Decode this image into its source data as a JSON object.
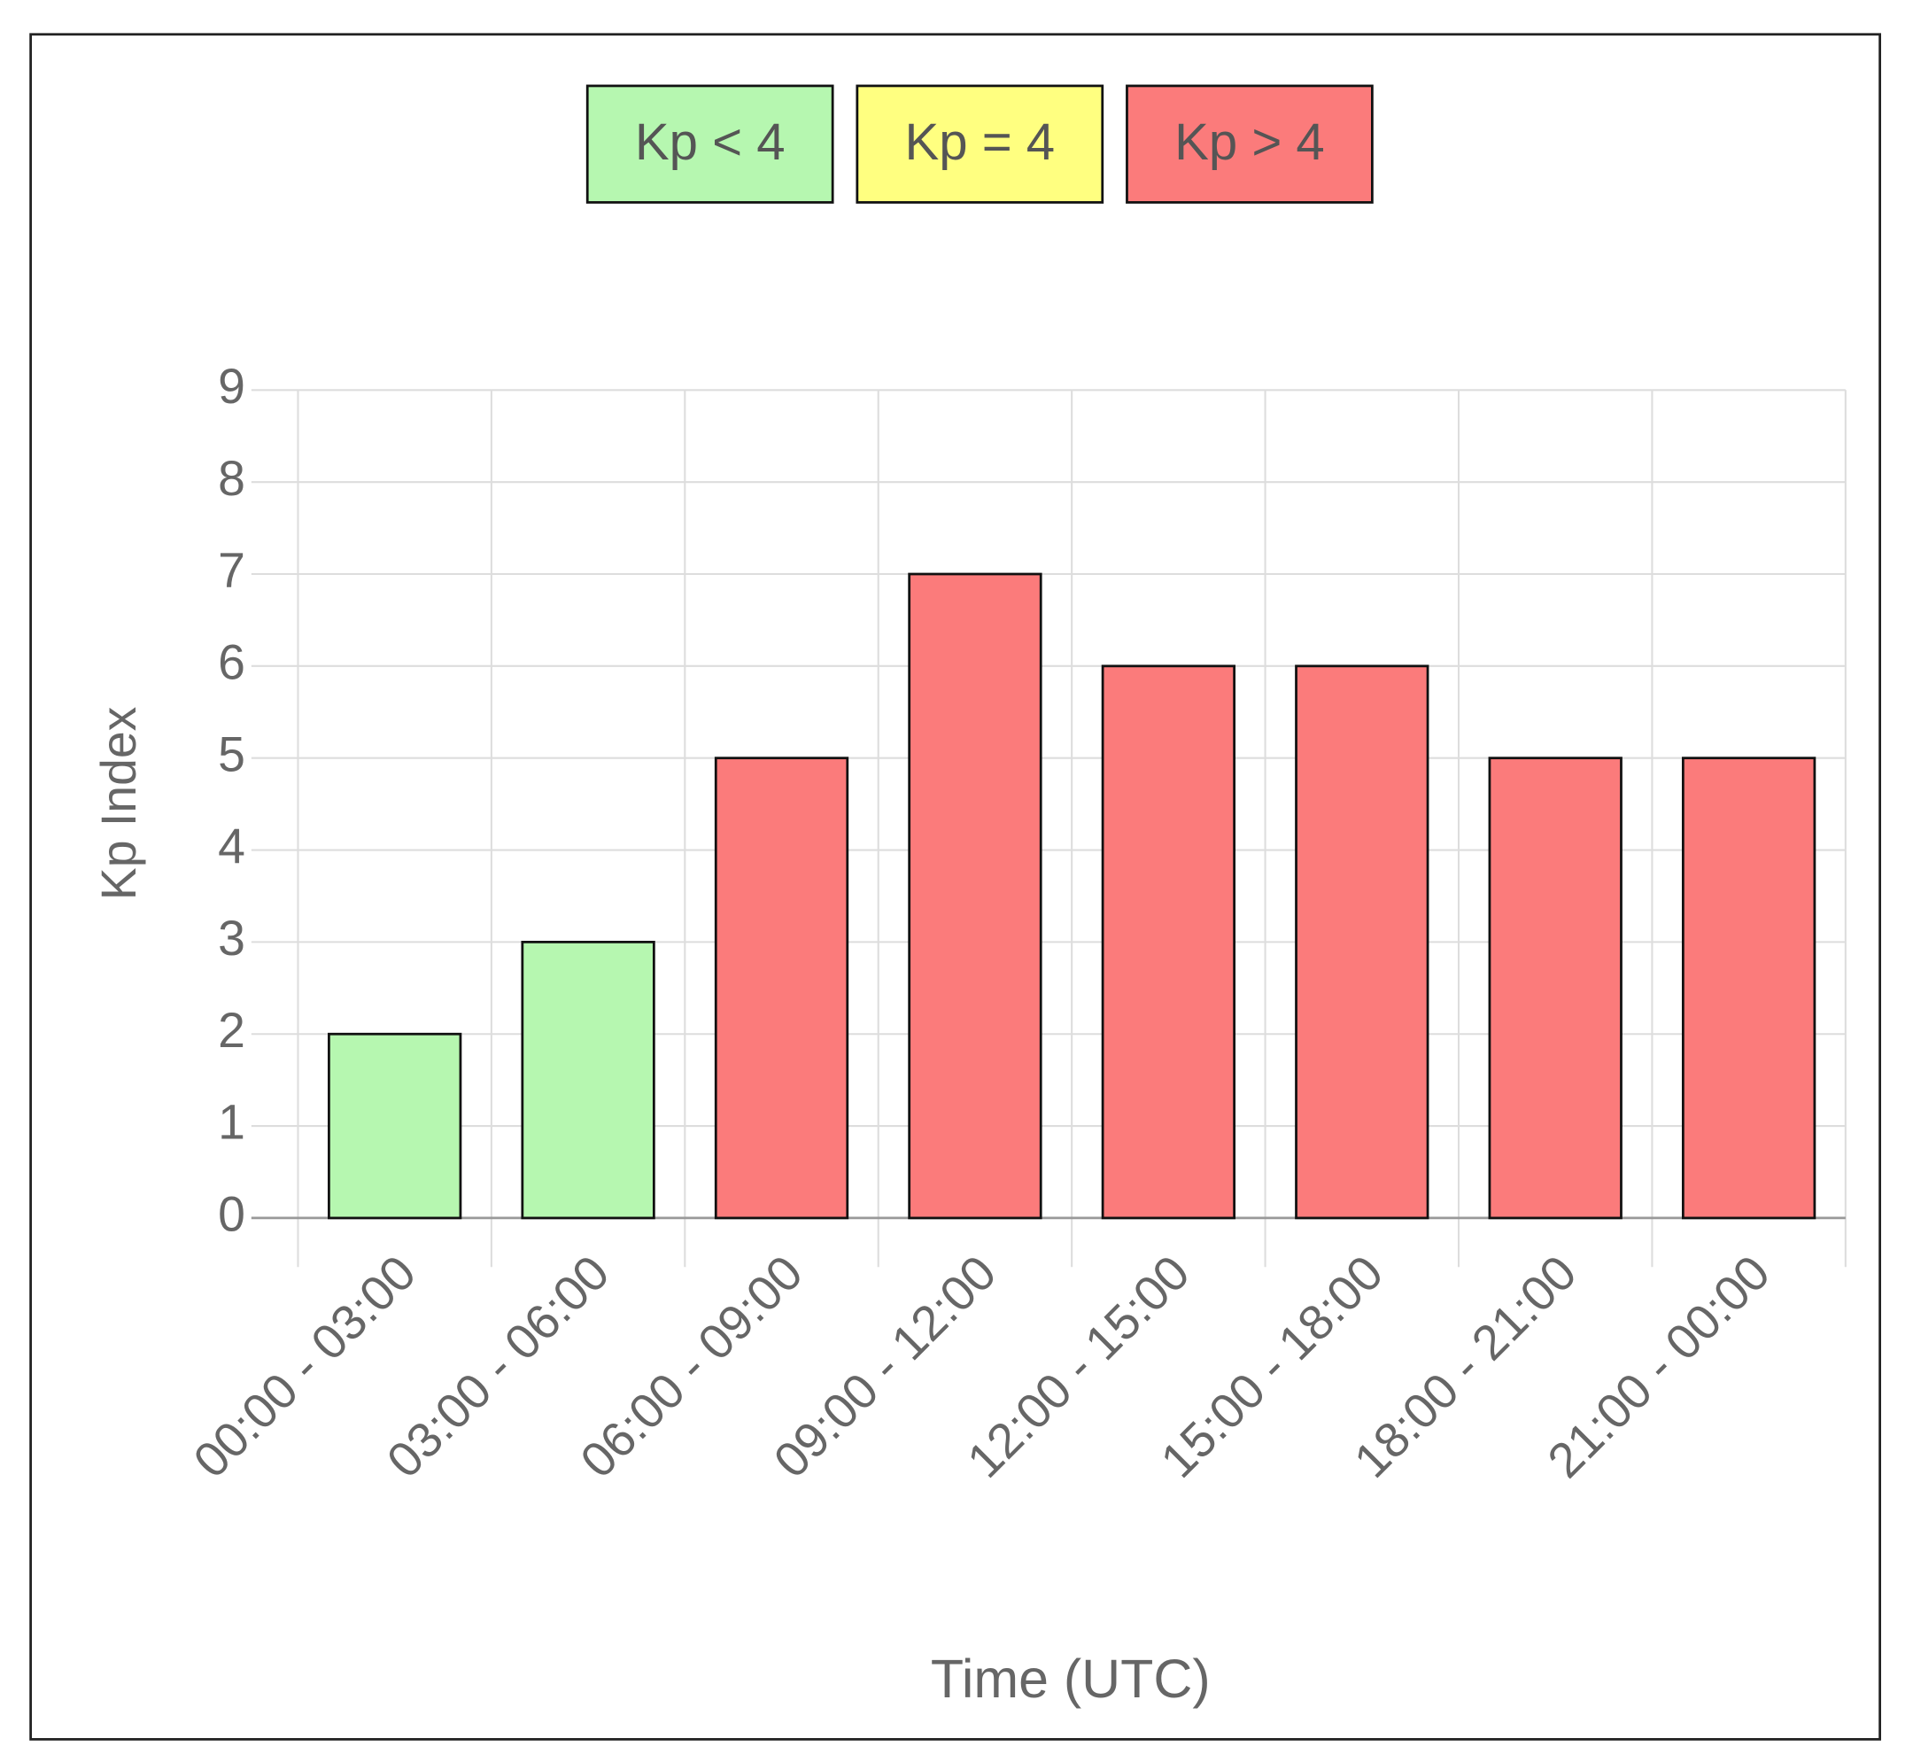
{
  "chart_data": {
    "type": "bar",
    "x_label": "Time (UTC)",
    "y_label": "Kp Index",
    "categories": [
      "00:00 - 03:00",
      "03:00 - 06:00",
      "06:00 - 09:00",
      "09:00 - 12:00",
      "12:00 - 15:00",
      "15:00 - 18:00",
      "18:00 - 21:00",
      "21:00 - 00:00"
    ],
    "values": [
      2,
      3,
      5,
      7,
      6,
      6,
      5,
      5
    ],
    "colors": [
      "#b6f7b0",
      "#b6f7b0",
      "#fb7b7b",
      "#fb7b7b",
      "#fb7b7b",
      "#fb7b7b",
      "#fb7b7b",
      "#fb7b7b"
    ],
    "legend": [
      {
        "name": "Kp < 4",
        "color": "#b6f7b0"
      },
      {
        "name": "Kp = 4",
        "color": "#ffff80"
      },
      {
        "name": "Kp > 4",
        "color": "#fb7b7b"
      }
    ],
    "legend_position": "top",
    "ylim": [
      0,
      9
    ],
    "yticks": [
      0,
      1,
      2,
      3,
      4,
      5,
      6,
      7,
      8,
      9
    ],
    "grid": true
  }
}
